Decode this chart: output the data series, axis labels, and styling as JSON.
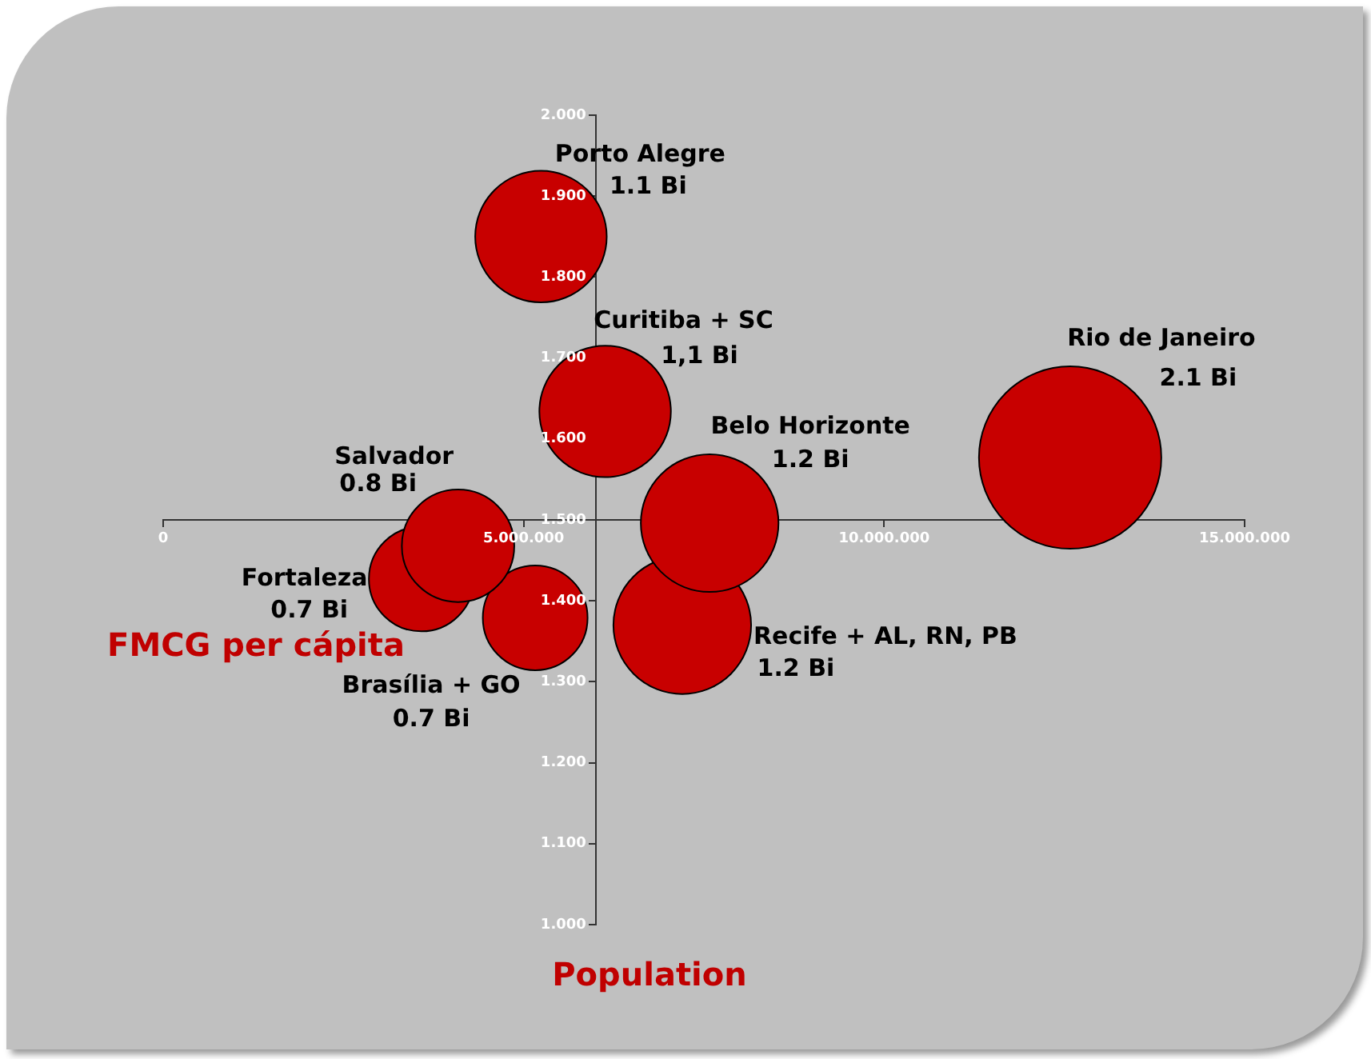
{
  "chart_data": {
    "type": "bubble",
    "xlabel": "Population",
    "ylabel": "FMCG per cápita",
    "xlim": [
      0,
      15000000
    ],
    "ylim": [
      1.0,
      2.0
    ],
    "xticks": [
      0,
      {
        "value": 5000000,
        "label": "5.000.000"
      },
      {
        "value": 10000000,
        "label": "10.000.000"
      },
      {
        "value": 15000000,
        "label": "15.000.000"
      }
    ],
    "yticks": [
      {
        "value": 1.0,
        "label": "1.000"
      },
      {
        "value": 1.1,
        "label": "1.100"
      },
      {
        "value": 1.2,
        "label": "1.200"
      },
      {
        "value": 1.3,
        "label": "1.300"
      },
      {
        "value": 1.4,
        "label": "1.400"
      },
      {
        "value": 1.5,
        "label": "1.500"
      },
      {
        "value": 1.6,
        "label": "1.600"
      },
      {
        "value": 1.7,
        "label": "1.700"
      },
      {
        "value": 1.8,
        "label": "1.800"
      },
      {
        "value": 1.9,
        "label": "1.900"
      },
      {
        "value": 2.0,
        "label": "2.000"
      }
    ],
    "grid": false,
    "legend": false,
    "annotations": [
      "1.1 Bi",
      "1,1 Bi",
      "2.1 Bi",
      "1.2 Bi",
      "0.8 Bi",
      "0.7 Bi",
      "0.7 Bi",
      "1.2 Bi"
    ],
    "series": [
      {
        "name": "Porto Alegre",
        "color": "#c80000",
        "x": [
          5240000
        ],
        "values": [
          1.85
        ],
        "sizes": [
          0.52
        ]
      },
      {
        "name": "Curitiba + SC",
        "color": "#c80000",
        "x": [
          6130000
        ],
        "values": [
          1.634
        ],
        "sizes": [
          0.52
        ]
      },
      {
        "name": "Rio de Janeiro",
        "color": "#c80000",
        "x": [
          12580000
        ],
        "values": [
          1.577
        ],
        "sizes": [
          1
        ]
      },
      {
        "name": "Belo Horizonte",
        "color": "#c80000",
        "x": [
          7580000
        ],
        "values": [
          1.496
        ],
        "sizes": [
          0.57
        ]
      },
      {
        "name": "Salvador",
        "color": "#c80000",
        "x": [
          4090000
        ],
        "values": [
          1.468
        ],
        "sizes": [
          0.38
        ]
      },
      {
        "name": "Fortaleza",
        "color": "#c80000",
        "x": [
          3580000
        ],
        "values": [
          1.427
        ],
        "sizes": [
          0.33
        ]
      },
      {
        "name": "Brasília + GO",
        "color": "#c80000",
        "x": [
          5160000
        ],
        "values": [
          1.379
        ],
        "sizes": [
          0.33
        ]
      },
      {
        "name": "Recife + AL, RN, PB",
        "color": "#c80000",
        "x": [
          7200000
        ],
        "values": [
          1.37
        ],
        "sizes": [
          0.57
        ]
      }
    ]
  }
}
